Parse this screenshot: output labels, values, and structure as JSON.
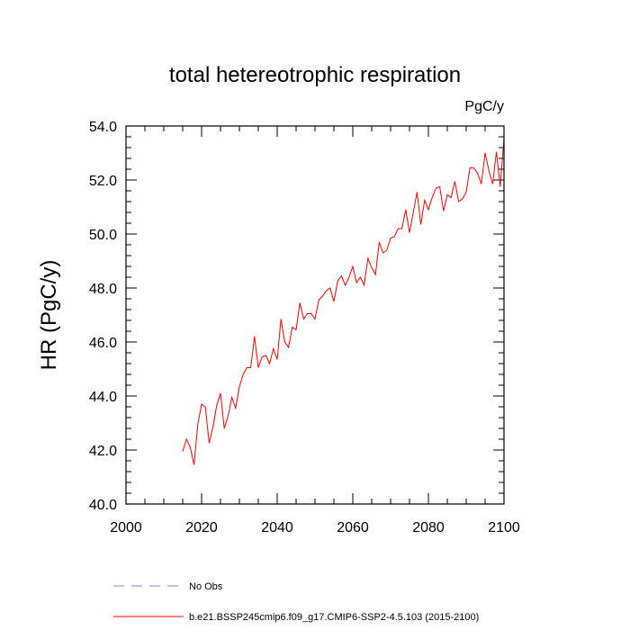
{
  "chart_data": {
    "type": "line",
    "title": "total hetereotrophic respiration",
    "units_label": "PgC/y",
    "xlabel": "",
    "ylabel": "HR  (PgC/y)",
    "xlim": [
      2000,
      2100
    ],
    "ylim": [
      40.0,
      54.0
    ],
    "x_ticks": [
      2000,
      2020,
      2040,
      2060,
      2080,
      2100
    ],
    "x_tick_labels": [
      "2000",
      "2020",
      "2040",
      "2060",
      "2080",
      "2100"
    ],
    "y_ticks": [
      40,
      42,
      44,
      46,
      48,
      50,
      52,
      54
    ],
    "y_tick_labels": [
      "40.0",
      "42.0",
      "44.0",
      "46.0",
      "48.0",
      "50.0",
      "52.0",
      "54.0"
    ],
    "grid": false,
    "legend_placement": "bottom",
    "series": [
      {
        "name": "b.e21.BSSP245cmip6.f09_g17.CMIP6-SSP2-4.5.103 (2015-2100)",
        "color": "#ff0000",
        "style": "solid",
        "x": [
          2015,
          2016,
          2017,
          2018,
          2019,
          2020,
          2021,
          2022,
          2023,
          2024,
          2025,
          2026,
          2027,
          2028,
          2029,
          2030,
          2031,
          2032,
          2033,
          2034,
          2035,
          2036,
          2037,
          2038,
          2039,
          2040,
          2041,
          2042,
          2043,
          2044,
          2045,
          2046,
          2047,
          2048,
          2049,
          2050,
          2051,
          2052,
          2053,
          2054,
          2055,
          2056,
          2057,
          2058,
          2059,
          2060,
          2061,
          2062,
          2063,
          2064,
          2065,
          2066,
          2067,
          2068,
          2069,
          2070,
          2071,
          2072,
          2073,
          2074,
          2075,
          2076,
          2077,
          2078,
          2079,
          2080,
          2081,
          2082,
          2083,
          2084,
          2085,
          2086,
          2087,
          2088,
          2089,
          2090,
          2091,
          2092,
          2093,
          2094,
          2095,
          2096,
          2097,
          2098,
          2099,
          2100
        ],
        "y": [
          41.95,
          42.4,
          42.1,
          41.45,
          42.95,
          43.7,
          43.6,
          42.25,
          42.85,
          43.65,
          44.1,
          42.8,
          43.25,
          43.95,
          43.55,
          44.35,
          44.8,
          45.05,
          45.05,
          46.2,
          45.05,
          45.45,
          45.5,
          45.2,
          45.75,
          45.35,
          46.85,
          46.0,
          45.8,
          46.55,
          46.45,
          47.45,
          46.85,
          47.05,
          47.05,
          46.85,
          47.55,
          47.7,
          47.9,
          48.0,
          47.5,
          48.25,
          48.45,
          48.1,
          48.4,
          48.8,
          48.2,
          48.4,
          48.1,
          49.1,
          48.75,
          48.5,
          49.7,
          49.3,
          49.4,
          49.85,
          49.9,
          50.2,
          50.2,
          50.9,
          50.05,
          50.8,
          51.55,
          50.35,
          51.25,
          50.9,
          51.35,
          51.7,
          51.75,
          50.85,
          51.45,
          51.35,
          51.95,
          51.2,
          51.3,
          51.55,
          52.45,
          52.45,
          52.25,
          51.85,
          53.0,
          52.35,
          51.85,
          53.05,
          51.75,
          53.55
        ]
      },
      {
        "name": "No Obs",
        "color": "#8080ff",
        "style": "dashed",
        "x": [],
        "y": []
      }
    ]
  }
}
